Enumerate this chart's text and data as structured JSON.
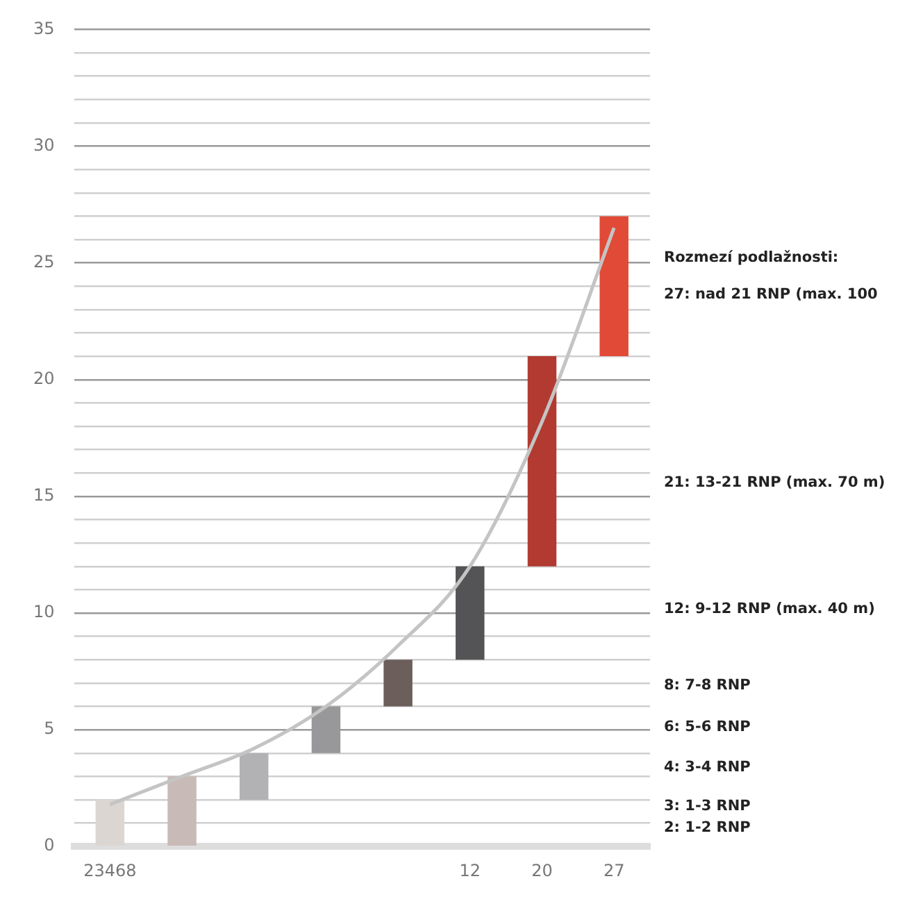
{
  "chart_data": {
    "type": "bar",
    "categories": [
      "23468",
      null,
      null,
      null,
      null,
      "12",
      "20",
      "27"
    ],
    "base": [
      0,
      0,
      2,
      4,
      6,
      8,
      12,
      21
    ],
    "values": [
      2,
      3,
      2,
      2,
      2,
      4,
      9,
      6
    ],
    "colors": [
      "#dcd6d2",
      "#c8bab6",
      "#b2b2b4",
      "#98989a",
      "#6c5e5a",
      "#545456",
      "#b23a30",
      "#e04a36"
    ],
    "series": [
      {
        "type": "line",
        "color": "#c4c4c4",
        "values": [
          1.8,
          3,
          4.2,
          6,
          8.6,
          12,
          18.2,
          26.5
        ]
      }
    ],
    "ylim": [
      0,
      35
    ],
    "yticks": [
      0,
      {
        "value": 1,
        "label": null
      },
      {
        "value": 2,
        "label": null
      },
      {
        "value": 3,
        "label": null
      },
      {
        "value": 4,
        "label": null
      },
      5,
      {
        "value": 6,
        "label": null
      },
      {
        "value": 7,
        "label": null
      },
      {
        "value": 8,
        "label": null
      },
      {
        "value": 9,
        "label": null
      },
      10,
      {
        "value": 11,
        "label": null
      },
      {
        "value": 12,
        "label": null
      },
      {
        "value": 13,
        "label": null
      },
      {
        "value": 14,
        "label": null
      },
      15,
      {
        "value": 16,
        "label": null
      },
      {
        "value": 17,
        "label": null
      },
      {
        "value": 18,
        "label": null
      },
      {
        "value": 19,
        "label": null
      },
      20,
      {
        "value": 21,
        "label": null
      },
      {
        "value": 22,
        "label": null
      },
      {
        "value": 23,
        "label": null
      },
      {
        "value": 24,
        "label": null
      },
      25,
      {
        "value": 26,
        "label": null
      },
      {
        "value": 27,
        "label": null
      },
      {
        "value": 28,
        "label": null
      },
      {
        "value": 29,
        "label": null
      },
      30,
      {
        "value": 31,
        "label": null
      },
      {
        "value": 32,
        "label": null
      },
      {
        "value": 33,
        "label": null
      },
      {
        "value": 34,
        "label": null
      },
      35
    ],
    "grid": "y",
    "legend": false,
    "marker": "none",
    "annotations": [
      "Rozmezí podlažnosti:",
      "27: nad 21 RNP (max. 100",
      "21: 13-21 RNP (max. 70 m)",
      "12: 9-12 RNP (max. 40 m)",
      "8: 7-8 RNP",
      "6: 5-6 RNP",
      "4: 3-4 RNP",
      "3: 1-3 RNP",
      "2: 1-2 RNP"
    ]
  }
}
